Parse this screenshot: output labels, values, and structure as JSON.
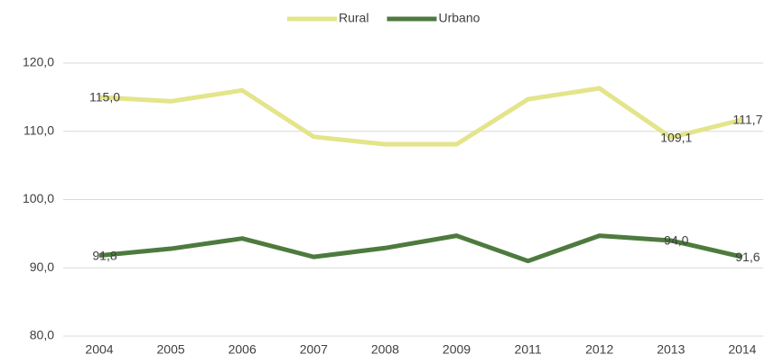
{
  "chart_data": {
    "type": "line",
    "categories": [
      "2004",
      "2005",
      "2006",
      "2007",
      "2008",
      "2009",
      "2011",
      "2012",
      "2013",
      "2014"
    ],
    "series": [
      {
        "name": "Rural",
        "color": "#e4e48a",
        "values": [
          115.0,
          114.4,
          116.0,
          109.2,
          108.1,
          108.1,
          114.7,
          116.3,
          109.1,
          111.7
        ],
        "value_labels": [
          "115,0",
          null,
          null,
          null,
          null,
          null,
          null,
          null,
          "109,1",
          "111,7"
        ]
      },
      {
        "name": "Urbano",
        "color": "#4e7a3e",
        "values": [
          91.8,
          92.8,
          94.3,
          91.6,
          92.9,
          94.7,
          91.0,
          94.7,
          94.0,
          91.6
        ],
        "value_labels": [
          "91,8",
          null,
          null,
          null,
          null,
          null,
          null,
          null,
          "94,0",
          "91,6"
        ]
      }
    ],
    "ylim": [
      80,
      120
    ],
    "yticks": [
      {
        "value": 80,
        "label": "80,0"
      },
      {
        "value": 90,
        "label": "90,0"
      },
      {
        "value": 100,
        "label": "100,0"
      },
      {
        "value": 110,
        "label": "110,0"
      },
      {
        "value": 120,
        "label": "120,0"
      }
    ],
    "grid": true
  }
}
